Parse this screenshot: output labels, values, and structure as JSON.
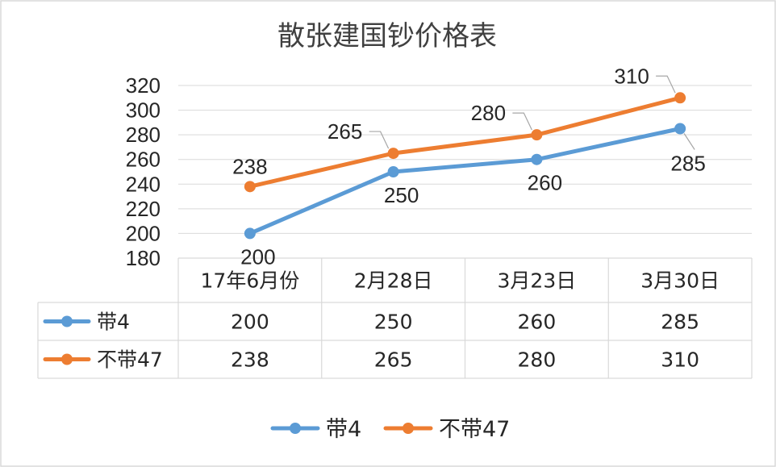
{
  "chart_data": {
    "type": "line",
    "title": "散张建国钞价格表",
    "categories": [
      "17年6月份",
      "2月28日",
      "3月23日",
      "3月30日"
    ],
    "ylim": [
      180,
      320
    ],
    "yticks": [
      180,
      200,
      220,
      240,
      260,
      280,
      300,
      320
    ],
    "grid": true,
    "legend": "bottom",
    "data_table": true,
    "series": [
      {
        "name": "带4",
        "values": [
          200,
          250,
          260,
          285
        ],
        "color": "#5b9bd5"
      },
      {
        "name": "不带47",
        "values": [
          238,
          265,
          280,
          310
        ],
        "color": "#ed7d31"
      }
    ]
  }
}
